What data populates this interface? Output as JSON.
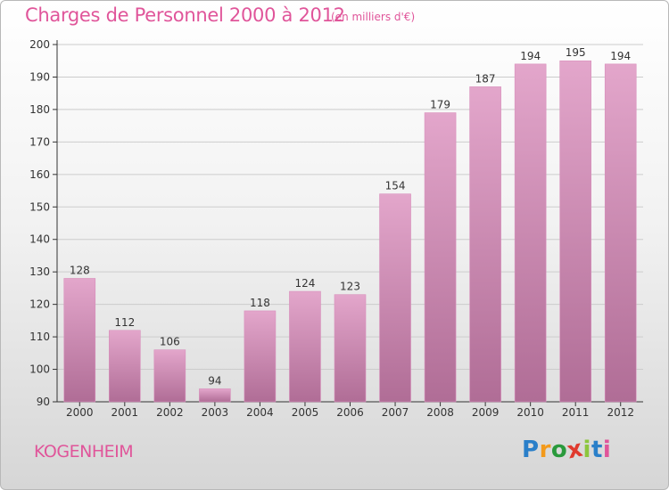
{
  "title": "Charges de Personnel 2000 à 2012",
  "subtitle": "(en milliers d'€)",
  "commune": "KOGENHEIM",
  "logo": {
    "letters": [
      "P",
      "r",
      "o",
      "x",
      "i",
      "t",
      "i"
    ],
    "colors": [
      "#2a7fc9",
      "#f39a1b",
      "#2a9a3c",
      "#e03a2e",
      "#8cc63e",
      "#2a7fc9",
      "#e0559a"
    ]
  },
  "colors": {
    "bar_top": "#e3a6cb",
    "bar_bottom": "#b06d96",
    "title": "#e0559a",
    "axis": "#333333",
    "grid": "#cccccc"
  },
  "chart_data": {
    "type": "bar",
    "categories": [
      "2000",
      "2001",
      "2002",
      "2003",
      "2004",
      "2005",
      "2006",
      "2007",
      "2008",
      "2009",
      "2010",
      "2011",
      "2012"
    ],
    "values": [
      128,
      112,
      106,
      94,
      118,
      124,
      123,
      154,
      179,
      187,
      194,
      195,
      194
    ],
    "ylim": [
      90,
      200
    ],
    "yticks": [
      90,
      100,
      110,
      120,
      130,
      140,
      150,
      160,
      170,
      180,
      190,
      200
    ],
    "title": "Charges de Personnel 2000 à 2012",
    "xlabel": "",
    "ylabel": "",
    "grid": true
  }
}
